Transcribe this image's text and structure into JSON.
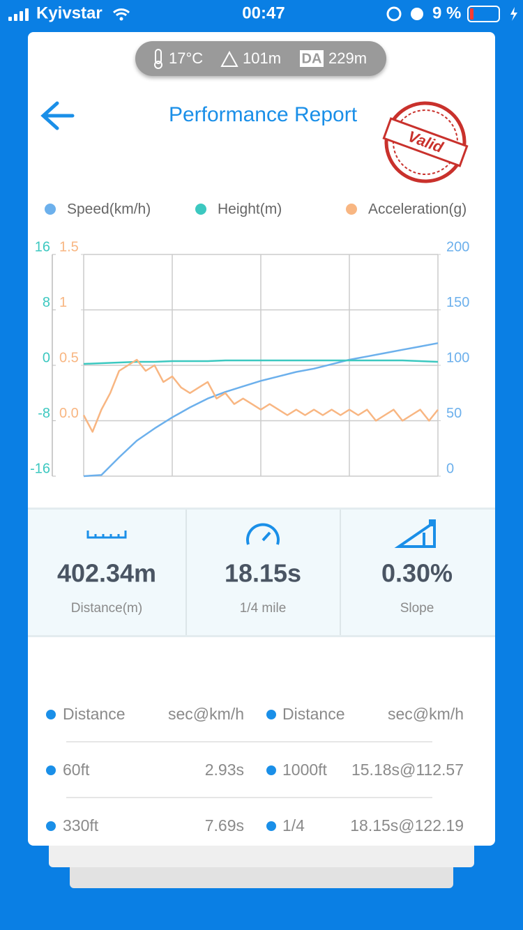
{
  "status_bar": {
    "carrier": "Kyivstar",
    "time": "00:47",
    "battery": "9 %"
  },
  "conditions": {
    "temperature": "17°C",
    "altitude": "101m",
    "da_label": "DA",
    "density_altitude": "229m"
  },
  "header": {
    "title": "Performance Report",
    "stamp": "Valid"
  },
  "chart_data": {
    "type": "line",
    "grid": true,
    "series": [
      {
        "name": "Speed(km/h)",
        "color": "#6cb0ec",
        "axis": "y2",
        "values": [
          0,
          1,
          17,
          32,
          43,
          53,
          62,
          70,
          76,
          81,
          86,
          90,
          94,
          97,
          101,
          105,
          108,
          111,
          114,
          117,
          120
        ]
      },
      {
        "name": "Height(m)",
        "color": "#3cc8c0",
        "axis": "y",
        "values": [
          0.2,
          0.3,
          0.4,
          0.5,
          0.5,
          0.6,
          0.6,
          0.6,
          0.7,
          0.7,
          0.7,
          0.7,
          0.7,
          0.7,
          0.7,
          0.7,
          0.7,
          0.7,
          0.7,
          0.6,
          0.5
        ]
      },
      {
        "name": "Acceleration(g)",
        "color": "#f8b682",
        "axis": "y3",
        "values": [
          0.05,
          -0.1,
          0.1,
          0.25,
          0.45,
          0.5,
          0.55,
          0.45,
          0.5,
          0.35,
          0.4,
          0.3,
          0.25,
          0.3,
          0.35,
          0.2,
          0.25,
          0.15,
          0.2,
          0.15,
          0.1,
          0.15,
          0.1,
          0.05,
          0.1,
          0.05,
          0.1,
          0.05,
          0.1,
          0.05,
          0.1,
          0.05,
          0.1,
          0.0,
          0.05,
          0.1,
          0.0,
          0.05,
          0.1,
          0.0,
          0.1
        ]
      }
    ],
    "ylim": [
      -16,
      16
    ],
    "yticks": [
      -16,
      -8,
      0,
      8,
      16
    ],
    "y2lim": [
      0,
      200
    ],
    "y2ticks": [
      0,
      50,
      100,
      150,
      200
    ],
    "y3lim": [
      -0.5,
      1.5
    ],
    "y3ticks": [
      {
        "value": 0,
        "label": "0.0"
      },
      0.5,
      1,
      1.5
    ]
  },
  "stats": [
    {
      "value": "402.34m",
      "label": "Distance(m)"
    },
    {
      "value": "18.15s",
      "label": "1/4 mile"
    },
    {
      "value": "0.30%",
      "label": "Slope"
    }
  ],
  "splits": {
    "header": [
      "Distance",
      "sec@km/h",
      "Distance",
      "sec@km/h"
    ],
    "rows": [
      [
        "60ft",
        "2.93s",
        "1000ft",
        "15.18s@112.57"
      ],
      [
        "330ft",
        "7.69s",
        "1/4",
        "18.15s@122.19"
      ]
    ]
  }
}
